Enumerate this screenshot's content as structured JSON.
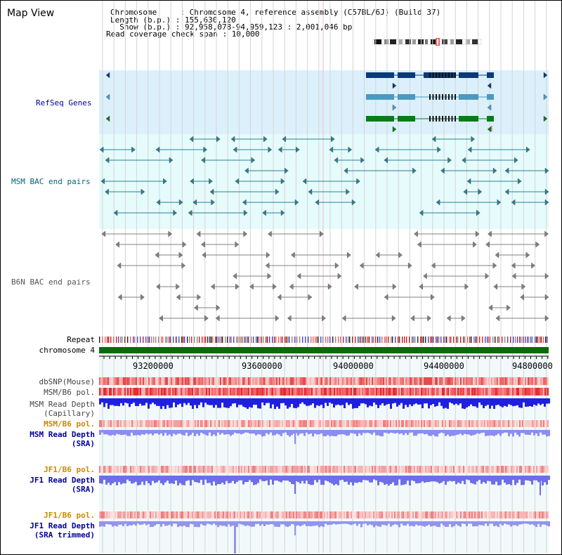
{
  "app": {
    "title": "Map View"
  },
  "header": {
    "line1": "Chromosome     : Chromosome 4, reference assembly (C57BL/6J) (Build 37)",
    "line2": "Length (b.p.) : 155,630,120",
    "line3": "  Show (b.p.) : 92,958,078-94,959,123 : 2,001,046 bp",
    "line4": "Read coverage check span : 10,000"
  },
  "tracks": {
    "refseq": "RefSeq Genes",
    "msm_bac": "MSM BAC end pairs",
    "b6n_bac": "B6N BAC end pairs",
    "repeat": "Repeat",
    "chromosome": "chromosome 4",
    "dbsnp": "dbSNP(Mouse)",
    "msm_b6_pol": "MSM/B6 pol.",
    "msm_depth_cap_1": "MSM Read Depth",
    "msm_depth_cap_2": "(Capillary)",
    "msm_b6_pol_sra": "MSM/B6 pol.",
    "msm_depth_sra_1": "MSM Read Depth",
    "msm_depth_sra_2": "(SRA)",
    "jf1_b6_pol_1": "JF1/B6 pol.",
    "jf1_depth_sra_1": "JF1 Read Depth",
    "jf1_depth_sra_2": "(SRA)",
    "jf1_b6_pol_2": "JF1/B6 pol.",
    "jf1_depth_trim_1": "JF1 Read Depth",
    "jf1_depth_trim_2": "(SRA trimmed)"
  },
  "axis": {
    "ticks": [
      "93200000",
      "93600000",
      "94000000",
      "94400000",
      "94800000"
    ]
  },
  "colors": {
    "refseq_bg": "#dbf0fb",
    "msm_bg": "#e6fbfb",
    "pane_bg": "#f1f9fb",
    "chromosome": "#0b6b0b",
    "msm_color": "#2a7f96",
    "b6n_color": "#808080",
    "label_blue": "#000099",
    "label_teal": "#006677",
    "label_orange": "#cc8800"
  }
}
